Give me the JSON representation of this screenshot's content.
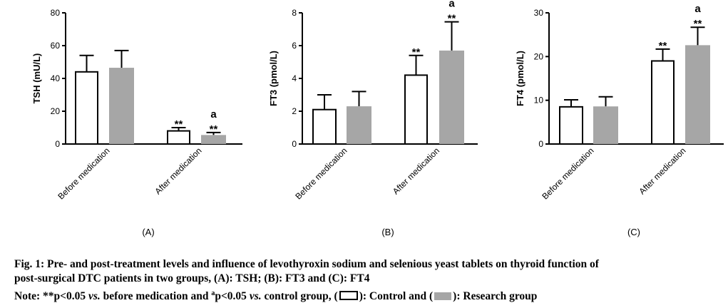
{
  "chart_data": [
    {
      "type": "bar",
      "panel_label": "(A)",
      "ylabel": "TSH (mU/L)",
      "categories": [
        "Before medication",
        "After medication"
      ],
      "ylim": [
        0,
        80
      ],
      "yticks": [
        "0",
        "20",
        "40",
        "60",
        "80"
      ],
      "series": [
        {
          "name": "Control",
          "values": [
            44.0,
            8.0
          ],
          "errors": [
            10.0,
            2.0
          ]
        },
        {
          "name": "Research",
          "values": [
            46.5,
            5.5
          ],
          "errors": [
            10.5,
            1.5
          ]
        }
      ],
      "annotations": [
        {
          "category": 1,
          "series": 0,
          "text": "**"
        },
        {
          "category": 1,
          "series": 1,
          "text": "**"
        },
        {
          "category": 1,
          "series": 1,
          "text": "a"
        }
      ]
    },
    {
      "type": "bar",
      "panel_label": "(B)",
      "ylabel": "FT3 (pmol/L)",
      "categories": [
        "Before medication",
        "After medication"
      ],
      "ylim": [
        0,
        8
      ],
      "yticks": [
        "0",
        "2",
        "4",
        "6",
        "8"
      ],
      "series": [
        {
          "name": "Control",
          "values": [
            2.1,
            4.2
          ],
          "errors": [
            0.9,
            1.2
          ]
        },
        {
          "name": "Research",
          "values": [
            2.3,
            5.7
          ],
          "errors": [
            0.9,
            1.75
          ]
        }
      ],
      "annotations": [
        {
          "category": 1,
          "series": 0,
          "text": "**"
        },
        {
          "category": 1,
          "series": 1,
          "text": "**"
        },
        {
          "category": 1,
          "series": 1,
          "text": "a"
        }
      ]
    },
    {
      "type": "bar",
      "panel_label": "(C)",
      "ylabel": "FT4 (pmol/L)",
      "categories": [
        "Before medication",
        "After medication"
      ],
      "ylim": [
        0,
        30
      ],
      "yticks": [
        "0",
        "10",
        "20",
        "30"
      ],
      "series": [
        {
          "name": "Control",
          "values": [
            8.5,
            19.0
          ],
          "errors": [
            1.6,
            2.7
          ]
        },
        {
          "name": "Research",
          "values": [
            8.6,
            22.6
          ],
          "errors": [
            2.2,
            4.1
          ]
        }
      ],
      "annotations": [
        {
          "category": 1,
          "series": 0,
          "text": "**"
        },
        {
          "category": 1,
          "series": 1,
          "text": "**"
        },
        {
          "category": 1,
          "series": 1,
          "text": "a"
        }
      ]
    }
  ],
  "colors": {
    "control_fill": "#ffffff",
    "research_fill": "#a6a6a6",
    "axis": "#000000"
  },
  "caption": {
    "line1": "Fig. 1: Pre- and post-treatment levels and influence of levothyroxin sodium and selenious yeast tablets on thyroid function of",
    "line2": "post-surgical DTC patients in two groups, (A): TSH; (B): FT3 and (C): FT4",
    "note_prefix": "Note: **p<0.05 ",
    "note_vs1": "vs.",
    "note_mid": " before medication and ",
    "note_sup": "a",
    "note_mid2": "p<0.05 ",
    "note_vs2": "vs.",
    "note_mid3": " control group, (",
    "note_control": "): Control and (",
    "note_research": "): Research group"
  }
}
